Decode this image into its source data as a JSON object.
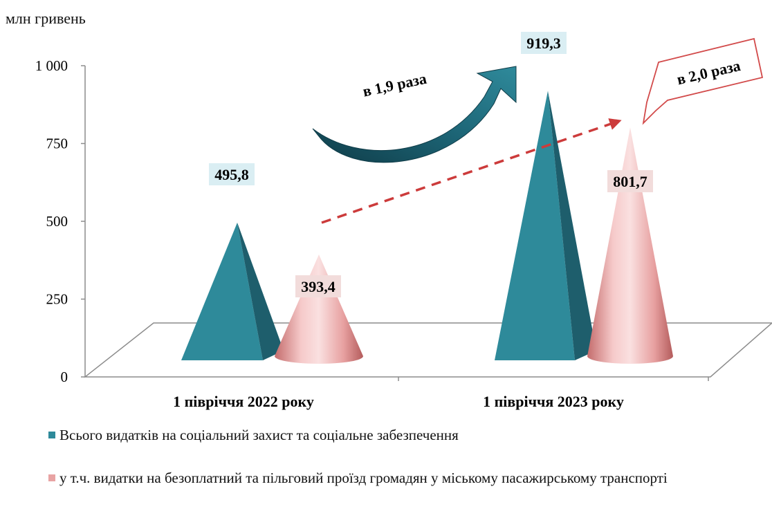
{
  "chart_data": {
    "type": "bar",
    "unit_label": "млн гривень",
    "categories": [
      "1 півріччя  2022 року",
      "1 півріччя  2023 року"
    ],
    "ylim": [
      0,
      1000
    ],
    "yticks": [
      0,
      250,
      500,
      750,
      1000
    ],
    "ytick_labels": [
      "0",
      "250",
      "500",
      "750",
      "1 000"
    ],
    "series": [
      {
        "name": "Всього видатків на соціальний захист та соціальне забезпечення",
        "values": [
          495.8,
          919.3
        ],
        "labels": [
          "495,8",
          "919,3"
        ],
        "color": "#2e8a9a"
      },
      {
        "name": "у т.ч. видатки на безоплатний та пільговий проїзд  громадян у міському пасажирському транспорті",
        "values": [
          393.4,
          801.7
        ],
        "labels": [
          "393,4",
          "801,7"
        ],
        "color": "#e8a3a3"
      }
    ],
    "annotations": [
      {
        "text": "в 1,9 раза",
        "series": 0
      },
      {
        "text": "в 2,0 раза",
        "series": 1
      }
    ],
    "legend": "bottom"
  }
}
